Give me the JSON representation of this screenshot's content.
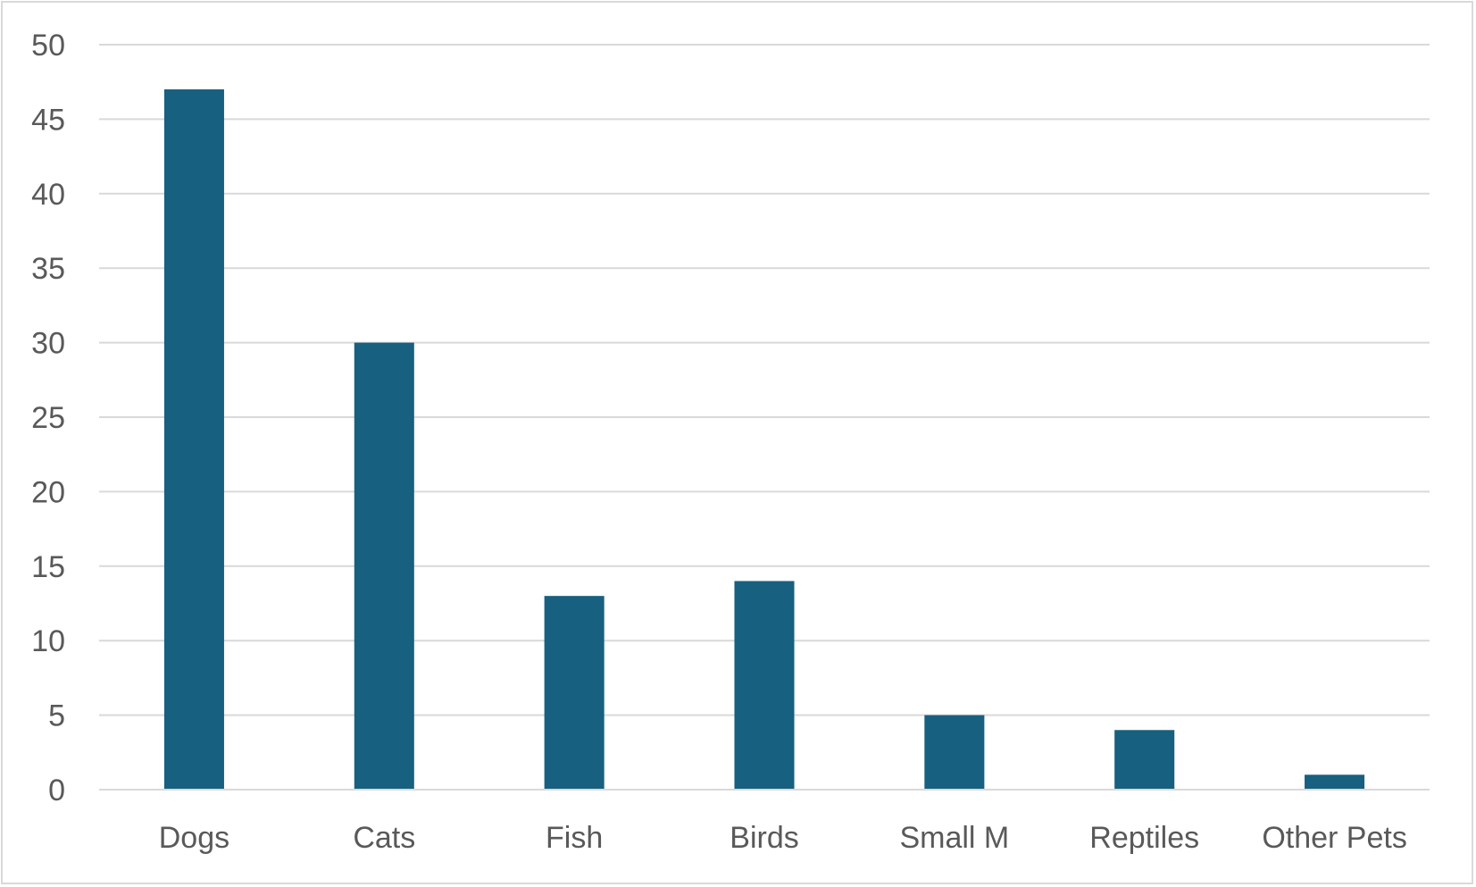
{
  "chart_data": {
    "type": "bar",
    "title": "",
    "xlabel": "",
    "ylabel": "",
    "categories": [
      "Dogs",
      "Cats",
      "Fish",
      "Birds",
      "Small M",
      "Reptiles",
      "Other Pets"
    ],
    "values": [
      47,
      30,
      13,
      14,
      5,
      4,
      1
    ],
    "ylim": [
      0,
      50
    ],
    "yticks": [
      0,
      5,
      10,
      15,
      20,
      25,
      30,
      35,
      40,
      45,
      50
    ],
    "ytick_labels": [
      "0",
      "5",
      "10",
      "15",
      "20",
      "25",
      "30",
      "35",
      "40",
      "45",
      "50"
    ],
    "grid": true,
    "legend": "none",
    "bar_color": "#17607f",
    "grid_color": "#d9d9d9",
    "text_color": "#595959"
  }
}
